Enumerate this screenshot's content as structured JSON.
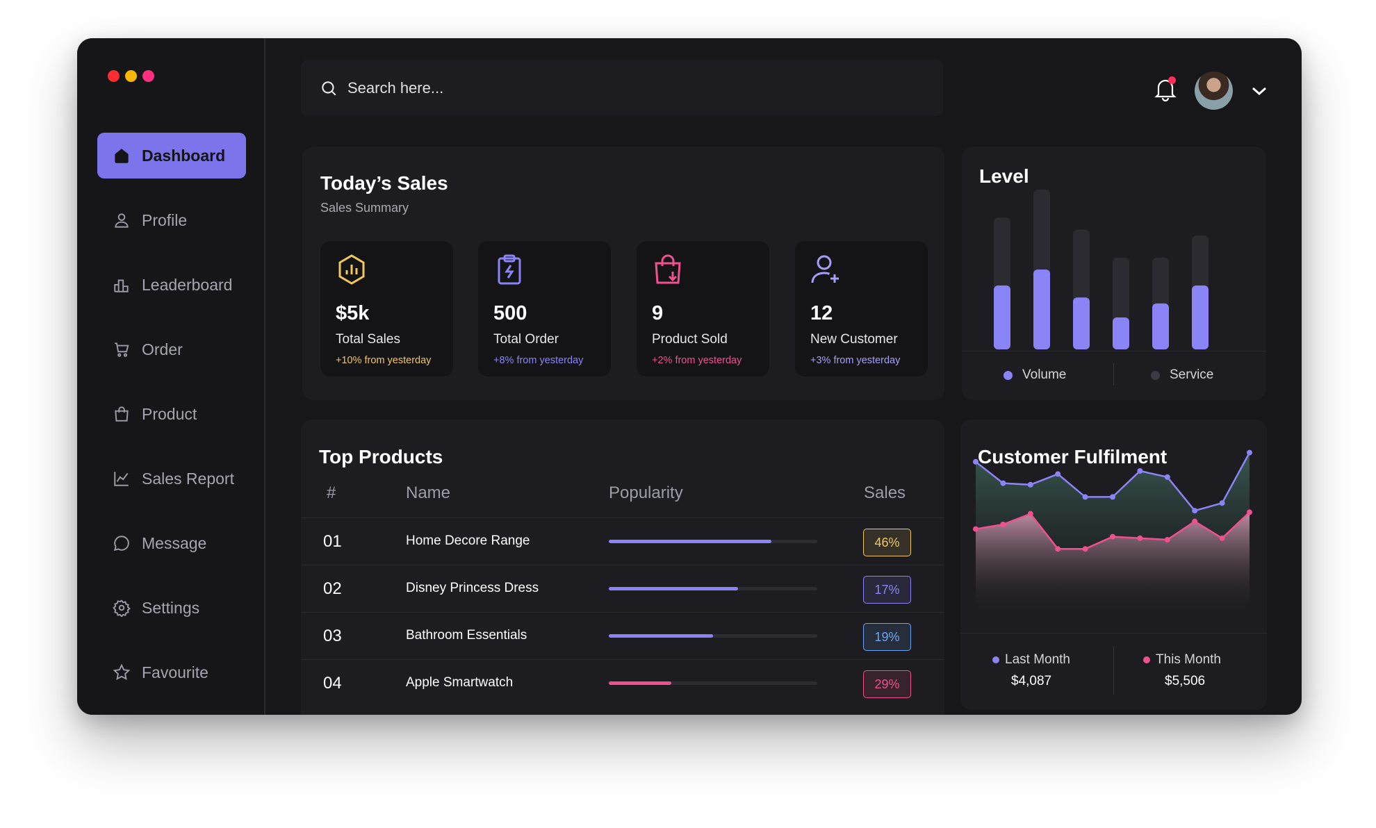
{
  "window": {
    "traffic_colors": [
      "#ff2d2d",
      "#f5b700",
      "#ff2e7e"
    ]
  },
  "sidebar": {
    "items": [
      {
        "label": "Dashboard",
        "icon": "home-icon"
      },
      {
        "label": "Profile",
        "icon": "user-icon"
      },
      {
        "label": "Leaderboard",
        "icon": "leaderboard-icon"
      },
      {
        "label": "Order",
        "icon": "cart-icon"
      },
      {
        "label": "Product",
        "icon": "bag-icon"
      },
      {
        "label": "Sales Report",
        "icon": "chart-line-icon"
      },
      {
        "label": "Message",
        "icon": "message-icon"
      },
      {
        "label": "Settings",
        "icon": "gear-icon"
      },
      {
        "label": "Favourite",
        "icon": "star-icon"
      }
    ],
    "active": "Dashboard"
  },
  "search": {
    "placeholder": "Search here..."
  },
  "sales": {
    "title": "Today’s Sales",
    "subtitle": "Sales Summary",
    "stats": [
      {
        "value": "$5k",
        "label": "Total Sales",
        "change": "+10% from yesterday",
        "color": "#f2c75c",
        "icon": "hexagon-chart-icon"
      },
      {
        "value": "500",
        "label": "Total Order",
        "change": "+8% from yesterday",
        "color": "#8b84f6",
        "icon": "clipboard-bolt-icon"
      },
      {
        "value": "9",
        "label": "Product Sold",
        "change": "+2% from yesterday",
        "color": "#f0508f",
        "icon": "shopping-bag-icon"
      },
      {
        "value": "12",
        "label": "New Customer",
        "change": "+3% from yesterday",
        "color": "#a69ff8",
        "icon": "user-plus-icon"
      }
    ]
  },
  "level": {
    "title": "Level",
    "legend": [
      {
        "label": "Volume",
        "color": "#8b84f6"
      },
      {
        "label": "Service",
        "color": "#3a3a42"
      }
    ]
  },
  "products": {
    "title": "Top Products",
    "headers": [
      "#",
      "Name",
      "Popularity",
      "Sales"
    ],
    "rows": [
      {
        "num": "01",
        "name": "Home Decore Range",
        "popularity": 0.78,
        "sales": "46%",
        "color": "#f2c75c",
        "bar": "#8b84f6"
      },
      {
        "num": "02",
        "name": "Disney Princess Dress",
        "popularity": 0.62,
        "sales": "17%",
        "color": "#8b84f6",
        "bar": "#8b84f6"
      },
      {
        "num": "03",
        "name": "Bathroom Essentials",
        "popularity": 0.5,
        "sales": "19%",
        "color": "#6aa6f5",
        "bar": "#8b84f6"
      },
      {
        "num": "04",
        "name": "Apple Smartwatch",
        "popularity": 0.3,
        "sales": "29%",
        "color": "#f0508f",
        "bar": "#f0508f"
      }
    ]
  },
  "fulfilment": {
    "title": "Customer Fulfilment",
    "last": {
      "label": "Last Month",
      "value": "$4,087",
      "color": "#8b84f6"
    },
    "this": {
      "label": "This Month",
      "value": "$5,506",
      "color": "#f0508f"
    }
  },
  "chart_data": [
    {
      "type": "bar",
      "title": "Level",
      "categories": [
        "1",
        "2",
        "3",
        "4",
        "5",
        "6"
      ],
      "series": [
        {
          "name": "Volume",
          "values": [
            32,
            40,
            26,
            16,
            23,
            32
          ]
        },
        {
          "name": "Service",
          "values": [
            34,
            40,
            34,
            30,
            23,
            25
          ]
        }
      ],
      "stacked": true,
      "ylim": [
        0,
        80
      ],
      "grid": false,
      "legend": "bottom"
    },
    {
      "type": "area",
      "title": "Customer Fulfilment",
      "x": [
        1,
        2,
        3,
        4,
        5,
        6,
        7,
        8,
        9,
        10,
        11
      ],
      "series": [
        {
          "name": "Last Month",
          "values": [
            86,
            72,
            71,
            78,
            63,
            63,
            80,
            76,
            54,
            59,
            92
          ]
        },
        {
          "name": "This Month",
          "values": [
            42,
            45,
            52,
            29,
            29,
            37,
            36,
            35,
            47,
            36,
            53
          ]
        }
      ],
      "ylim": [
        0,
        100
      ],
      "grid": false,
      "legend": "bottom"
    }
  ]
}
